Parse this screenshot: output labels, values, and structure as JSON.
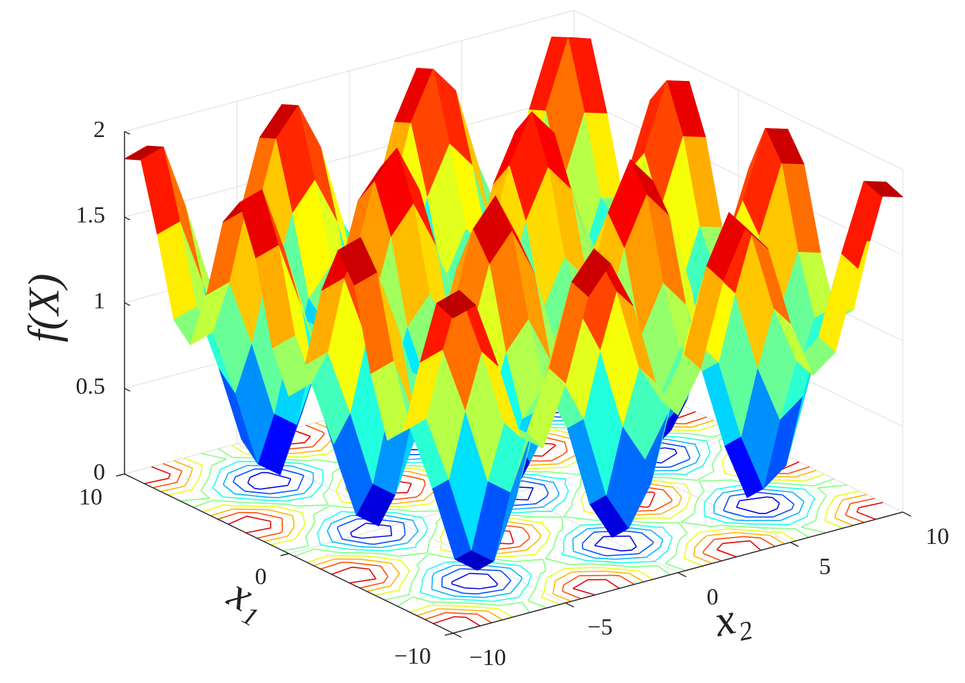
{
  "chart_data": {
    "type": "surface",
    "xlabel": "x₁",
    "ylabel": "x₂",
    "zlabel": "f(X)",
    "colormap": "jet",
    "contour": true,
    "grid": true,
    "x1": [
      -10,
      -9,
      -8,
      -7,
      -6,
      -5,
      -4,
      -3,
      -2,
      -1,
      0,
      1,
      2,
      3,
      4,
      5,
      6,
      7,
      8,
      9,
      10
    ],
    "x2": [
      -10,
      -9,
      -8,
      -7,
      -6,
      -5,
      -4,
      -3,
      -2,
      -1,
      0,
      1,
      2,
      3,
      4,
      5,
      6,
      7,
      8,
      9,
      10
    ],
    "x1lim": [
      -10,
      10
    ],
    "x2lim": [
      -10,
      10
    ],
    "zlim": [
      0,
      2
    ],
    "x1ticks": [
      {
        "value": -10,
        "label": "−10"
      },
      0,
      10
    ],
    "x2ticks": [
      {
        "value": -10,
        "label": "−10"
      },
      {
        "value": -5,
        "label": "−5"
      },
      0,
      5,
      10
    ],
    "zticks": [
      0,
      0.5,
      1,
      1.5,
      2
    ],
    "z": [
      [
        1.84,
        1.88,
        1.49,
        1.04,
        0.94,
        1.28,
        1.75,
        1.91,
        1.63,
        1.15,
        0.92,
        1.15,
        1.63,
        1.91,
        1.75,
        1.28,
        0.94,
        1.04,
        1.49,
        1.88,
        1.84
      ],
      [
        1.88,
        1.92,
        1.53,
        1.08,
        0.98,
        1.32,
        1.79,
        1.95,
        1.67,
        1.19,
        0.96,
        1.19,
        1.67,
        1.95,
        1.79,
        1.32,
        0.98,
        1.08,
        1.53,
        1.92,
        1.88
      ],
      [
        1.49,
        1.53,
        1.14,
        0.69,
        0.59,
        0.93,
        1.4,
        1.56,
        1.28,
        0.8,
        0.57,
        0.8,
        1.28,
        1.56,
        1.4,
        0.93,
        0.59,
        0.69,
        1.14,
        1.53,
        1.49
      ],
      [
        1.04,
        1.08,
        0.69,
        0.24,
        0.14,
        0.48,
        0.95,
        1.11,
        0.83,
        0.35,
        0.12,
        0.35,
        0.83,
        1.11,
        0.95,
        0.48,
        0.14,
        0.24,
        0.69,
        1.08,
        1.04
      ],
      [
        0.94,
        0.98,
        0.59,
        0.14,
        0.04,
        0.38,
        0.85,
        1.01,
        0.73,
        0.25,
        0.02,
        0.25,
        0.73,
        1.01,
        0.85,
        0.38,
        0.04,
        0.14,
        0.59,
        0.98,
        0.94
      ],
      [
        1.28,
        1.32,
        0.93,
        0.48,
        0.38,
        0.72,
        1.19,
        1.35,
        1.07,
        0.59,
        0.36,
        0.59,
        1.07,
        1.35,
        1.19,
        0.72,
        0.38,
        0.48,
        0.93,
        1.32,
        1.28
      ],
      [
        1.75,
        1.79,
        1.4,
        0.95,
        0.85,
        1.19,
        1.66,
        1.82,
        1.54,
        1.06,
        0.83,
        1.06,
        1.54,
        1.82,
        1.66,
        1.19,
        0.85,
        0.95,
        1.4,
        1.79,
        1.75
      ],
      [
        1.91,
        1.95,
        1.56,
        1.11,
        1.01,
        1.35,
        1.82,
        1.98,
        1.7,
        1.22,
        0.99,
        1.22,
        1.7,
        1.98,
        1.82,
        1.35,
        1.01,
        1.11,
        1.56,
        1.95,
        1.91
      ],
      [
        1.63,
        1.67,
        1.28,
        0.83,
        0.73,
        1.07,
        1.54,
        1.7,
        1.42,
        0.94,
        0.71,
        0.94,
        1.42,
        1.7,
        1.54,
        1.07,
        0.73,
        0.83,
        1.28,
        1.67,
        1.63
      ],
      [
        1.15,
        1.19,
        0.8,
        0.35,
        0.25,
        0.59,
        1.06,
        1.22,
        0.94,
        0.46,
        0.23,
        0.46,
        0.94,
        1.22,
        1.06,
        0.59,
        0.25,
        0.35,
        0.8,
        1.19,
        1.15
      ],
      [
        0.92,
        0.96,
        0.57,
        0.12,
        0.02,
        0.36,
        0.83,
        0.99,
        0.71,
        0.23,
        0,
        0.23,
        0.71,
        0.99,
        0.83,
        0.36,
        0.02,
        0.12,
        0.57,
        0.96,
        0.92
      ],
      [
        1.15,
        1.19,
        0.8,
        0.35,
        0.25,
        0.59,
        1.06,
        1.22,
        0.94,
        0.46,
        0.23,
        0.46,
        0.94,
        1.22,
        1.06,
        0.59,
        0.25,
        0.35,
        0.8,
        1.19,
        1.15
      ],
      [
        1.63,
        1.67,
        1.28,
        0.83,
        0.73,
        1.07,
        1.54,
        1.7,
        1.42,
        0.94,
        0.71,
        0.94,
        1.42,
        1.7,
        1.54,
        1.07,
        0.73,
        0.83,
        1.28,
        1.67,
        1.63
      ],
      [
        1.91,
        1.95,
        1.56,
        1.11,
        1.01,
        1.35,
        1.82,
        1.98,
        1.7,
        1.22,
        0.99,
        1.22,
        1.7,
        1.98,
        1.82,
        1.35,
        1.01,
        1.11,
        1.56,
        1.95,
        1.91
      ],
      [
        1.75,
        1.79,
        1.4,
        0.95,
        0.85,
        1.19,
        1.66,
        1.82,
        1.54,
        1.06,
        0.83,
        1.06,
        1.54,
        1.82,
        1.66,
        1.19,
        0.85,
        0.95,
        1.4,
        1.79,
        1.75
      ],
      [
        1.28,
        1.32,
        0.93,
        0.48,
        0.38,
        0.72,
        1.19,
        1.35,
        1.07,
        0.59,
        0.36,
        0.59,
        1.07,
        1.35,
        1.19,
        0.72,
        0.38,
        0.48,
        0.93,
        1.32,
        1.28
      ],
      [
        0.94,
        0.98,
        0.59,
        0.14,
        0.04,
        0.38,
        0.85,
        1.01,
        0.73,
        0.25,
        0.02,
        0.25,
        0.73,
        1.01,
        0.85,
        0.38,
        0.04,
        0.14,
        0.59,
        0.98,
        0.94
      ],
      [
        1.04,
        1.08,
        0.69,
        0.24,
        0.14,
        0.48,
        0.95,
        1.11,
        0.83,
        0.35,
        0.12,
        0.35,
        0.83,
        1.11,
        0.95,
        0.48,
        0.14,
        0.24,
        0.69,
        1.08,
        1.04
      ],
      [
        1.49,
        1.53,
        1.14,
        0.69,
        0.59,
        0.93,
        1.4,
        1.56,
        1.28,
        0.8,
        0.57,
        0.8,
        1.28,
        1.56,
        1.4,
        0.93,
        0.59,
        0.69,
        1.14,
        1.53,
        1.49
      ],
      [
        1.88,
        1.92,
        1.53,
        1.08,
        0.98,
        1.32,
        1.79,
        1.95,
        1.67,
        1.19,
        0.96,
        1.19,
        1.67,
        1.95,
        1.79,
        1.32,
        0.98,
        1.08,
        1.53,
        1.92,
        1.88
      ],
      [
        1.84,
        1.88,
        1.49,
        1.04,
        0.94,
        1.28,
        1.75,
        1.91,
        1.63,
        1.15,
        0.92,
        1.15,
        1.63,
        1.91,
        1.75,
        1.28,
        0.94,
        1.04,
        1.49,
        1.88,
        1.84
      ]
    ]
  }
}
